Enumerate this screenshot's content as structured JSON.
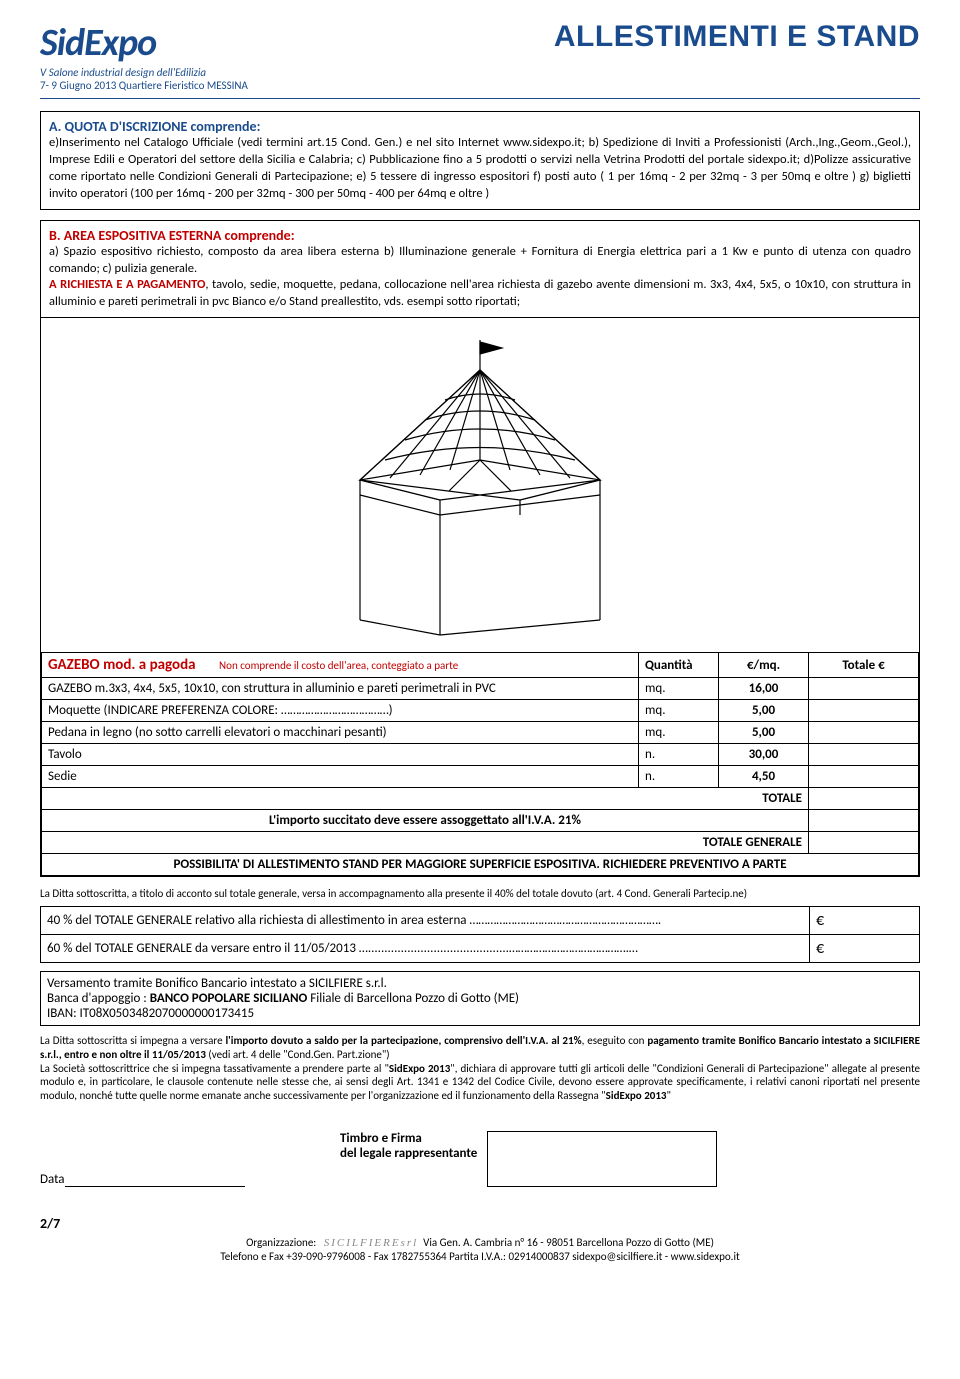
{
  "header": {
    "logo_main": "SidExpo",
    "logo_sub1": "V Salone industrial design dell'Edilizia",
    "logo_sub2": "7- 9 Giugno 2013 Quartiere Fieristico MESSINA",
    "page_title": "ALLESTIMENTI E STAND"
  },
  "section_a": {
    "title": "A. QUOTA D'ISCRIZIONE comprende:",
    "body": "e)Inserimento nel Catalogo Ufficiale (vedi termini art.15 Cond. Gen.) e nel sito Internet www.sidexpo.it; b) Spedizione di Inviti a Professionisti (Arch.,Ing.,Geom.,Geol.), Imprese Edili e Operatori del settore della Sicilia e Calabria; c) Pubblicazione fino a 5 prodotti o servizi nella Vetrina Prodotti del portale sidexpo.it; d)Polizze assicurative come riportato nelle Condizioni Generali di Partecipazione; e) 5 tessere di ingresso espositori f) posti auto ( 1 per 16mq - 2 per 32mq - 3 per 50mq e oltre ) g) biglietti invito operatori (100 per 16mq - 200 per 32mq - 300 per 50mq - 400 per 64mq e oltre )"
  },
  "section_b": {
    "title": "B. AREA ESPOSITIVA ESTERNA comprende:",
    "body1": "a) Spazio espositivo richiesto, composto da area libera esterna b) Illuminazione generale + Fornitura di Energia elettrica pari a 1 Kw e punto di utenza con quadro comando; c) pulizia generale.",
    "body2_prefix": "A RICHIESTA E A PAGAMENTO",
    "body2": ", tavolo, sedie, moquette, pedana, collocazione nell'area richiesta di gazebo avente dimensioni m. 3x3, 4x4, 5x5, o 10x10, con struttura in alluminio e pareti perimetrali in pvc Bianco e/o Stand preallestito, vds. esempi sotto riportati;"
  },
  "price_table": {
    "title": "GAZEBO mod. a pagoda",
    "subtitle": "Non comprende il costo dell'area, conteggiato a parte",
    "col_q": "Quantità",
    "col_p": "€/mq.",
    "col_t": "Totale €",
    "rows": [
      {
        "desc": "GAZEBO m.3x3, 4x4, 5x5, 10x10, con struttura in alluminio e pareti perimetrali in PVC",
        "unit": "mq.",
        "price": "16,00"
      },
      {
        "desc": "Moquette (INDICARE PREFERENZA COLORE: ………………………………)",
        "unit": "mq.",
        "price": "5,00"
      },
      {
        "desc": "Pedana in legno (no sotto carrelli elevatori o macchinari pesanti)",
        "unit": "mq.",
        "price": "5,00"
      },
      {
        "desc": "Tavolo",
        "unit": "n.",
        "price": "30,00"
      },
      {
        "desc": "Sedie",
        "unit": "n.",
        "price": "4,50"
      }
    ],
    "totale": "TOTALE",
    "iva_line": "L'importo succitato deve essere assoggettato all'I.V.A.  21%",
    "totale_gen": "TOTALE GENERALE",
    "footer_note": "POSSIBILITA' DI ALLESTIMENTO STAND PER MAGGIORE SUPERFICIE ESPOSITIVA. RICHIEDERE PREVENTIVO A PARTE"
  },
  "note_after_table": "La Ditta sottoscritta, a titolo di acconto sul totale generale, versa in accompagnamento alla presente il 40% del totale dovuto (art. 4 Cond. Generali Partecip.ne)",
  "payments": {
    "row1": "40 % del TOTALE GENERALE relativo alla richiesta di allestimento in area esterna ……………………………………………………….",
    "row2": "60 % del  TOTALE GENERALE da versare entro il 11/05/2013 …...........................................………………………………….…",
    "euro": "€"
  },
  "bank": {
    "line1": "Versamento tramite Bonifico Bancario intestato a  SICILFIERE s.r.l.",
    "line2_prefix": "Banca d'appoggio : ",
    "line2_bold": "BANCO POPOLARE SICILIANO",
    "line2_rest": " Filiale di Barcellona Pozzo di Gotto (ME)",
    "line3": "IBAN: IT08X0503482070000000173415"
  },
  "legal": "La Ditta sottoscritta si impegna a versare l'importo dovuto a saldo per la partecipazione, comprensivo dell'I.V.A. al 21%, eseguito con pagamento tramite Bonifico Bancario intestato a SICILFIERE s.r.l., entro e non oltre il 11/05/2013 (vedi art. 4 delle \"Cond.Gen. Part.zione\")\nLa Società sottoscrittrice che si impegna tassativamente a prendere parte al \"SidExpo 2013\", dichiara di approvare tutti gli articoli delle \"Condizioni Generali di Partecipazione\" allegate al presente modulo e, in particolare, le clausole contenute nelle stesse che, ai sensi degli Art. 1341 e 1342 del Codice Civile, devono essere approvate specificamente, i relativi canoni riportati nel presente modulo, nonché tutte quelle norme emanate anche successivamente per l'organizzazione ed il funzionamento della Rassegna \"SidExpo 2013\"",
  "signature": {
    "data_label": "Data",
    "stamp_label1": "Timbro e Firma",
    "stamp_label2": "del legale rappresentante"
  },
  "page_num": "2/7",
  "footer": {
    "org_label": "Organizzazione:",
    "org_logo": "SICILFIEREsrl",
    "addr": " Via Gen. A. Cambria n° 16 - 98051 Barcellona Pozzo di Gotto (ME)",
    "contact": "Telefono e Fax +39-090-9796008 - Fax 1782755364  Partita I.V.A.: 02914000837 sidexpo@sicilfiere.it - www.sidexpo.it"
  }
}
